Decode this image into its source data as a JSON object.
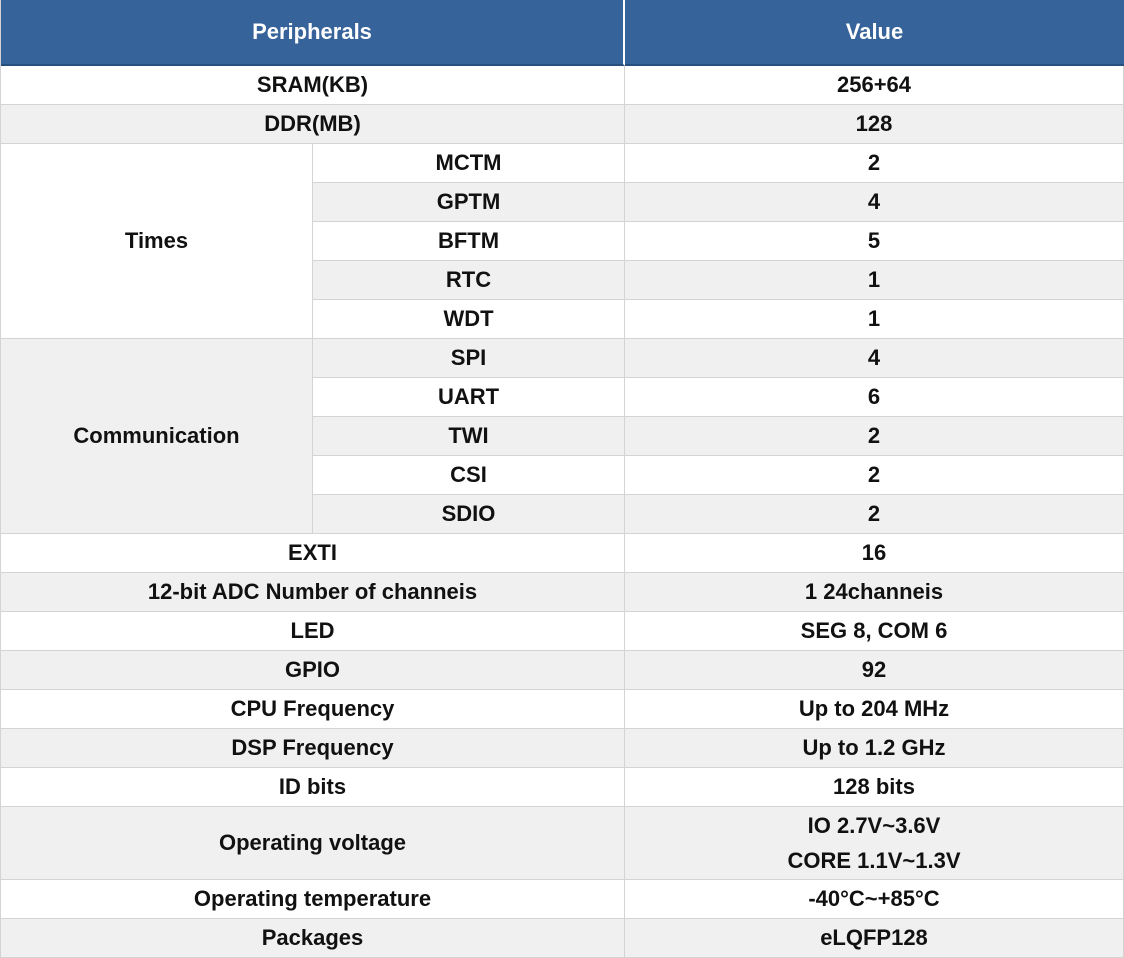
{
  "colors": {
    "header_bg": "#36639a",
    "header_text": "#ffffff",
    "header_bottom_edge": "#27507f",
    "row_alt_bg": "#f0f0f0",
    "row_bg": "#ffffff",
    "grid_line": "#d4d4d4",
    "body_text": "#1a1a1a"
  },
  "chart_data": {
    "type": "table",
    "title": "Peripherals / Value specification table",
    "columns": [
      "Peripherals",
      "Value"
    ],
    "rows": [
      {
        "label": "SRAM(KB)",
        "value": "256+64"
      },
      {
        "label": "DDR(MB)",
        "value": "128"
      },
      {
        "group": "Times",
        "label": "MCTM",
        "value": "2"
      },
      {
        "group": "Times",
        "label": "GPTM",
        "value": "4"
      },
      {
        "group": "Times",
        "label": "BFTM",
        "value": "5"
      },
      {
        "group": "Times",
        "label": "RTC",
        "value": "1"
      },
      {
        "group": "Times",
        "label": "WDT",
        "value": "1"
      },
      {
        "group": "Communication",
        "label": "SPI",
        "value": "4"
      },
      {
        "group": "Communication",
        "label": "UART",
        "value": "6"
      },
      {
        "group": "Communication",
        "label": "TWI",
        "value": "2"
      },
      {
        "group": "Communication",
        "label": "CSI",
        "value": "2"
      },
      {
        "group": "Communication",
        "label": "SDIO",
        "value": "2"
      },
      {
        "label": "EXTI",
        "value": "16"
      },
      {
        "label": "12-bit ADC Number of channeis",
        "value": "1 24channeis"
      },
      {
        "label": "LED",
        "value": "SEG 8, COM 6"
      },
      {
        "label": "GPIO",
        "value": "92"
      },
      {
        "label": "CPU Frequency",
        "value": "Up to 204 MHz"
      },
      {
        "label": "DSP Frequency",
        "value": "Up to 1.2 GHz"
      },
      {
        "label": "ID bits",
        "value": "128 bits"
      },
      {
        "label": "Operating voltage",
        "value": "IO 2.7V~3.6V / CORE 1.1V~1.3V"
      },
      {
        "label": "Operating temperature",
        "value": "-40°C~+85°C"
      },
      {
        "label": "Packages",
        "value": "eLQFP128"
      }
    ]
  },
  "table": {
    "header": {
      "col_peripherals": "Peripherals",
      "col_value": "Value"
    },
    "groups": {
      "times": "Times",
      "communication": "Communication"
    },
    "rows": {
      "sram": {
        "label": "SRAM(KB)",
        "value": "256+64"
      },
      "ddr": {
        "label": "DDR(MB)",
        "value": "128"
      },
      "mctm": {
        "label": "MCTM",
        "value": "2"
      },
      "gptm": {
        "label": "GPTM",
        "value": "4"
      },
      "bftm": {
        "label": "BFTM",
        "value": "5"
      },
      "rtc": {
        "label": "RTC",
        "value": "1"
      },
      "wdt": {
        "label": "WDT",
        "value": "1"
      },
      "spi": {
        "label": "SPI",
        "value": "4"
      },
      "uart": {
        "label": "UART",
        "value": "6"
      },
      "twi": {
        "label": "TWI",
        "value": "2"
      },
      "csi": {
        "label": "CSI",
        "value": "2"
      },
      "sdio": {
        "label": "SDIO",
        "value": "2"
      },
      "exti": {
        "label": "EXTI",
        "value": "16"
      },
      "adc": {
        "label": "12-bit ADC Number of channeis",
        "value": "1 24channeis"
      },
      "led": {
        "label": "LED",
        "value": "SEG 8, COM 6"
      },
      "gpio": {
        "label": "GPIO",
        "value": "92"
      },
      "cpu": {
        "label": "CPU Frequency",
        "value": "Up to 204 MHz"
      },
      "dsp": {
        "label": "DSP Frequency",
        "value": "Up to 1.2 GHz"
      },
      "idbits": {
        "label": "ID bits",
        "value": "128 bits"
      },
      "voltage": {
        "label": "Operating voltage",
        "value_line1": "IO 2.7V~3.6V",
        "value_line2": "CORE 1.1V~1.3V"
      },
      "temp": {
        "label": "Operating temperature",
        "value": "-40°C~+85°C"
      },
      "package": {
        "label": "Packages",
        "value": "eLQFP128"
      }
    }
  }
}
